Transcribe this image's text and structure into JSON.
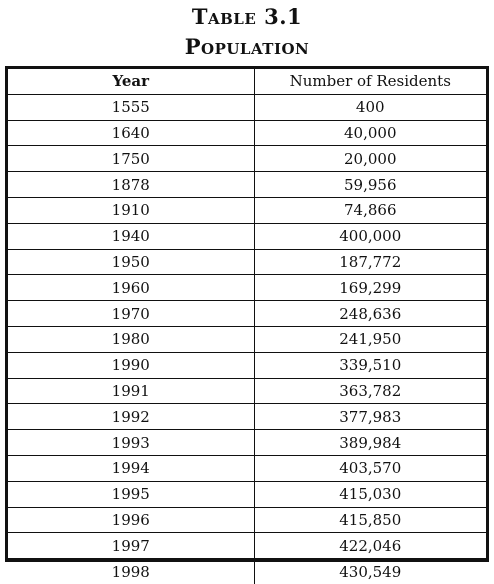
{
  "chart_data": {
    "type": "table",
    "title": "Table 3.1",
    "subtitle": "Population",
    "columns": [
      "Year",
      "Number of Residents"
    ],
    "rows": [
      [
        "1555",
        "400"
      ],
      [
        "1640",
        "40,000"
      ],
      [
        "1750",
        "20,000"
      ],
      [
        "1878",
        "59,956"
      ],
      [
        "1910",
        "74,866"
      ],
      [
        "1940",
        "400,000"
      ],
      [
        "1950",
        "187,772"
      ],
      [
        "1960",
        "169,299"
      ],
      [
        "1970",
        "248,636"
      ],
      [
        "1980",
        "241,950"
      ],
      [
        "1990",
        "339,510"
      ],
      [
        "1991",
        "363,782"
      ],
      [
        "1992",
        "377,983"
      ],
      [
        "1993",
        "389,984"
      ],
      [
        "1994",
        "403,570"
      ],
      [
        "1995",
        "415,030"
      ],
      [
        "1996",
        "415,850"
      ],
      [
        "1997",
        "422,046"
      ],
      [
        "1998",
        "430,549"
      ]
    ]
  }
}
